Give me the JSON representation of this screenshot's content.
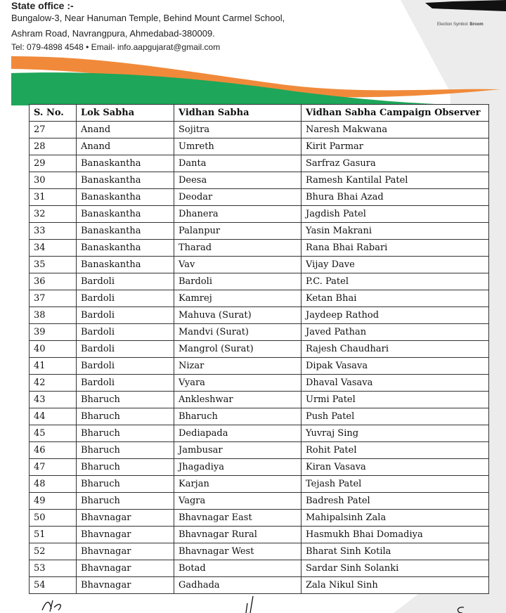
{
  "header": {
    "office_title": "State office :-",
    "address_line1": "Bungalow-3, Near Hanuman Temple,  Behind Mount Carmel School,",
    "address_line2": "Ashram Road, Navrangpura, Ahmedabad-380009.",
    "contact": "Tel: 079-4898 4548  •  Email- info.aapgujarat@gmail.com",
    "symbol_label": "Election Symbol:",
    "symbol_name": "Broom"
  },
  "colors": {
    "orange": "#f08a3a",
    "green": "#1ea65a"
  },
  "table": {
    "columns": [
      "S. No.",
      "Lok Sabha",
      "Vidhan Sabha",
      "Vidhan Sabha Campaign Observer"
    ],
    "rows": [
      [
        "27",
        "Anand",
        "Sojitra",
        "Naresh Makwana"
      ],
      [
        "28",
        "Anand",
        "Umreth",
        "Kirit Parmar"
      ],
      [
        "29",
        "Banaskantha",
        "Danta",
        "Sarfraz Gasura"
      ],
      [
        "30",
        "Banaskantha",
        "Deesa",
        "Ramesh Kantilal Patel"
      ],
      [
        "31",
        "Banaskantha",
        "Deodar",
        "Bhura Bhai Azad"
      ],
      [
        "32",
        "Banaskantha",
        "Dhanera",
        "Jagdish Patel"
      ],
      [
        "33",
        "Banaskantha",
        "Palanpur",
        "Yasin Makrani"
      ],
      [
        "34",
        "Banaskantha",
        "Tharad",
        "Rana Bhai Rabari"
      ],
      [
        "35",
        "Banaskantha",
        "Vav",
        "Vijay Dave"
      ],
      [
        "36",
        "Bardoli",
        "Bardoli",
        "P.C. Patel"
      ],
      [
        "37",
        "Bardoli",
        "Kamrej",
        "Ketan Bhai"
      ],
      [
        "38",
        "Bardoli",
        "Mahuva (Surat)",
        "Jaydeep Rathod"
      ],
      [
        "39",
        "Bardoli",
        "Mandvi (Surat)",
        "Javed Pathan"
      ],
      [
        "40",
        "Bardoli",
        "Mangrol (Surat)",
        "Rajesh Chaudhari"
      ],
      [
        "41",
        "Bardoli",
        "Nizar",
        "Dipak Vasava"
      ],
      [
        "42",
        "Bardoli",
        "Vyara",
        "Dhaval Vasava"
      ],
      [
        "43",
        "Bharuch",
        "Ankleshwar",
        "Urmi Patel"
      ],
      [
        "44",
        "Bharuch",
        "Bharuch",
        "Push Patel"
      ],
      [
        "45",
        "Bharuch",
        "Dediapada",
        "Yuvraj Sing"
      ],
      [
        "46",
        "Bharuch",
        "Jambusar",
        "Rohit Patel"
      ],
      [
        "47",
        "Bharuch",
        "Jhagadiya",
        "Kiran Vasava"
      ],
      [
        "48",
        "Bharuch",
        "Karjan",
        "Tejash Patel"
      ],
      [
        "49",
        "Bharuch",
        "Vagra",
        "Badresh Patel"
      ],
      [
        "50",
        "Bhavnagar",
        "Bhavnagar East",
        "Mahipalsinh Zala"
      ],
      [
        "51",
        "Bhavnagar",
        "Bhavnagar Rural",
        "Hasmukh Bhai Domadiya"
      ],
      [
        "52",
        "Bhavnagar",
        "Bhavnagar West",
        "Bharat Sinh Kotila"
      ],
      [
        "53",
        "Bhavnagar",
        "Botad",
        "Sardar Sinh Solanki"
      ],
      [
        "54",
        "Bhavnagar",
        "Gadhada",
        "Zala Nikul Sinh"
      ]
    ]
  }
}
